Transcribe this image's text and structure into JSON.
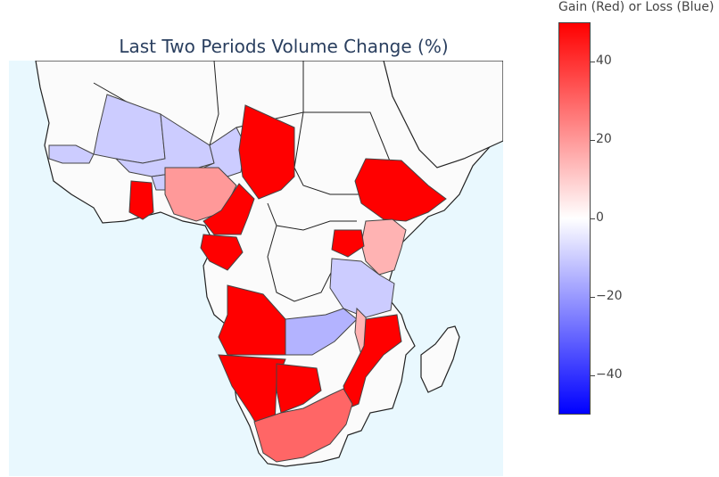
{
  "chart_data": {
    "type": "choropleth",
    "title": "Last Two Periods Volume Change (%)",
    "colorbar": {
      "title": "Gain (Red) or Loss (Blue)",
      "range": [
        -50,
        50
      ],
      "ticks": [
        40,
        20,
        0,
        -20,
        -40
      ],
      "tick_labels": [
        "40",
        "20",
        "0",
        "−20",
        "−40"
      ],
      "colorscale": [
        "#0000ff",
        "#ffffff",
        "#ff0000"
      ]
    },
    "regions": [
      {
        "name": "Mauritania",
        "value": -10
      },
      {
        "name": "Mali",
        "value": -10
      },
      {
        "name": "Niger",
        "value": -10
      },
      {
        "name": "Senegal",
        "value": -10
      },
      {
        "name": "Burkina Faso",
        "value": -10
      },
      {
        "name": "Chad",
        "value": 50
      },
      {
        "name": "Nigeria",
        "value": 20
      },
      {
        "name": "Ghana",
        "value": 50
      },
      {
        "name": "Cameroon",
        "value": 50
      },
      {
        "name": "Gabon",
        "value": 50
      },
      {
        "name": "Ethiopia",
        "value": 50
      },
      {
        "name": "Kenya",
        "value": 15
      },
      {
        "name": "Uganda",
        "value": 50
      },
      {
        "name": "Tanzania",
        "value": -10
      },
      {
        "name": "Zambia",
        "value": -15
      },
      {
        "name": "Malawi",
        "value": 15
      },
      {
        "name": "Angola",
        "value": 50
      },
      {
        "name": "Namibia",
        "value": 50
      },
      {
        "name": "Botswana",
        "value": 50
      },
      {
        "name": "Mozambique",
        "value": 50
      },
      {
        "name": "South Africa",
        "value": 30
      }
    ]
  }
}
